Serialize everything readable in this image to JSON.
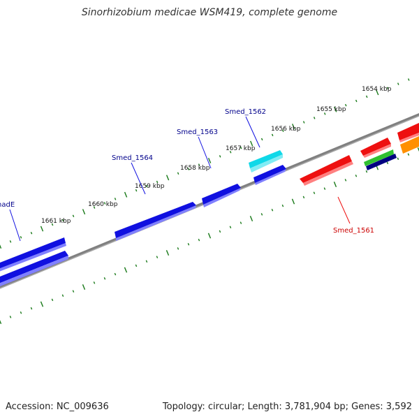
{
  "title": "Sinorhizobium medicae WSM419, complete genome",
  "footer": {
    "accession": "Accession: NC_009636",
    "summary": "Topology: circular; Length: 3,781,904 bp; Genes: 3,592"
  },
  "ruler_ticks": [
    "1654 kbp",
    "1655 kbp",
    "1656 kbp",
    "1657 kbp",
    "1658 kbp",
    "1659 kbp",
    "1660 kbp",
    "1661 kbp"
  ],
  "gene_labels": [
    "nadE",
    "Smed_1564",
    "Smed_1563",
    "Smed_1562",
    "Smed_1561"
  ],
  "colors": {
    "backbone": "#808080",
    "tick": "#1a7a1a",
    "forward_gene": "#1010e0",
    "reverse_gene": "#ee1010",
    "highlight_gene": "#10d8e8",
    "label_blue": "#00008b",
    "label_red": "#cc0000",
    "green_gene": "#30c030",
    "navy_gene": "#000080",
    "orange_gene": "#ff9000"
  }
}
